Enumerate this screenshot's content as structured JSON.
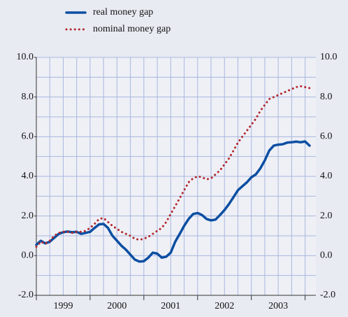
{
  "chart_data": {
    "type": "line",
    "x": [
      1999,
      1999.083,
      1999.167,
      1999.25,
      1999.333,
      1999.417,
      1999.5,
      1999.583,
      1999.667,
      1999.75,
      1999.833,
      1999.917,
      2000,
      2000.083,
      2000.167,
      2000.25,
      2000.333,
      2000.417,
      2000.5,
      2000.583,
      2000.667,
      2000.75,
      2000.833,
      2000.917,
      2001,
      2001.083,
      2001.167,
      2001.25,
      2001.333,
      2001.417,
      2001.5,
      2001.583,
      2001.667,
      2001.75,
      2001.833,
      2001.917,
      2002,
      2002.083,
      2002.167,
      2002.25,
      2002.333,
      2002.417,
      2002.5,
      2002.583,
      2002.667,
      2002.75,
      2002.833,
      2002.917,
      2003,
      2003.083,
      2003.167,
      2003.25,
      2003.333,
      2003.417,
      2003.5,
      2003.583,
      2003.667,
      2003.75,
      2003.833,
      2003.917,
      2004,
      2004.083
    ],
    "series": [
      {
        "name": "real money gap",
        "color": "#0b4ea2",
        "style": "solid",
        "values": [
          0.55,
          0.75,
          0.62,
          0.7,
          0.9,
          1.1,
          1.18,
          1.22,
          1.18,
          1.2,
          1.1,
          1.15,
          1.2,
          1.4,
          1.58,
          1.6,
          1.4,
          1.0,
          0.75,
          0.5,
          0.3,
          0.05,
          -0.2,
          -0.3,
          -0.28,
          -0.1,
          0.15,
          0.1,
          -0.1,
          -0.05,
          0.15,
          0.7,
          1.1,
          1.5,
          1.85,
          2.1,
          2.15,
          2.05,
          1.85,
          1.78,
          1.82,
          2.05,
          2.3,
          2.6,
          2.95,
          3.3,
          3.5,
          3.7,
          3.95,
          4.1,
          4.4,
          4.8,
          5.3,
          5.55,
          5.6,
          5.62,
          5.7,
          5.72,
          5.75,
          5.72,
          5.76,
          5.55
        ]
      },
      {
        "name": "nominal money gap",
        "color": "#b3292e",
        "style": "dotted",
        "values": [
          0.45,
          0.7,
          0.6,
          0.75,
          1.0,
          1.15,
          1.2,
          1.2,
          1.15,
          1.2,
          1.2,
          1.25,
          1.4,
          1.6,
          1.85,
          1.9,
          1.7,
          1.5,
          1.35,
          1.2,
          1.1,
          1.0,
          0.85,
          0.8,
          0.85,
          0.95,
          1.1,
          1.25,
          1.4,
          1.7,
          2.1,
          2.5,
          2.9,
          3.3,
          3.7,
          3.9,
          4.0,
          3.95,
          3.85,
          3.9,
          4.1,
          4.3,
          4.6,
          4.9,
          5.3,
          5.7,
          6.0,
          6.3,
          6.6,
          6.9,
          7.3,
          7.6,
          7.9,
          8.0,
          8.1,
          8.2,
          8.3,
          8.4,
          8.5,
          8.55,
          8.5,
          8.45
        ]
      }
    ],
    "xlim": [
      1999,
      2004.2
    ],
    "xticks": [
      {
        "value": 1999.5,
        "label": "1999"
      },
      {
        "value": 2000.5,
        "label": "2000"
      },
      {
        "value": 2001.5,
        "label": "2001"
      },
      {
        "value": 2002.5,
        "label": "2002"
      },
      {
        "value": 2003.5,
        "label": "2003"
      }
    ],
    "xgrid": [
      1999,
      1999.25,
      1999.5,
      1999.75,
      2000,
      2000.25,
      2000.5,
      2000.75,
      2001,
      2001.25,
      2001.5,
      2001.75,
      2002,
      2002.25,
      2002.5,
      2002.75,
      2003,
      2003.25,
      2003.5,
      2003.75,
      2004
    ],
    "ylim": [
      -2,
      10
    ],
    "yticks": [
      {
        "value": -2,
        "label": "-2.0"
      },
      {
        "value": 0,
        "label": "0.0"
      },
      {
        "value": 2,
        "label": "2.0"
      },
      {
        "value": 4,
        "label": "4.0"
      },
      {
        "value": 6,
        "label": "6.0"
      },
      {
        "value": 8,
        "label": "8.0"
      },
      {
        "value": 10,
        "label": "10.0"
      }
    ],
    "yminor": [
      -1,
      1,
      3,
      5,
      7,
      9
    ],
    "grid": true,
    "legend": "top-left"
  }
}
